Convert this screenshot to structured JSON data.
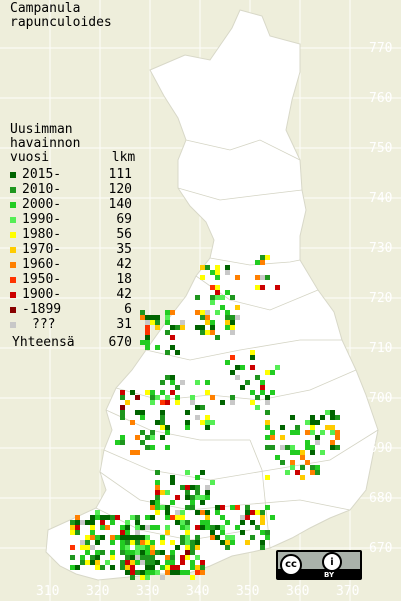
{
  "species_title": "Campanula\nrapunculoides",
  "legend": {
    "header": "Uusimman\nhavainnon\nvuosi        lkm",
    "rows": [
      {
        "label": "2015-",
        "count": "111",
        "color": "#006400"
      },
      {
        "label": "2010-",
        "count": "120",
        "color": "#1e961e"
      },
      {
        "label": "2000-",
        "count": "140",
        "color": "#22cc22"
      },
      {
        "label": "1990-",
        "count": "69",
        "color": "#55ee55"
      },
      {
        "label": "1980-",
        "count": "56",
        "color": "#ffff00"
      },
      {
        "label": "1970-",
        "count": "35",
        "color": "#ffcc00"
      },
      {
        "label": "1960-",
        "count": "42",
        "color": "#ff8000"
      },
      {
        "label": "1950-",
        "count": "18",
        "color": "#ff3300"
      },
      {
        "label": "1900-",
        "count": "42",
        "color": "#cc0000"
      },
      {
        "label": "-1899",
        "count": "6",
        "color": "#880000"
      },
      {
        "label": "???",
        "count": "31",
        "color": "#c8c8c8"
      }
    ],
    "total_label": "Yhteensä",
    "total_count": "670"
  },
  "axes": {
    "x_ticks": [
      "310",
      "320",
      "330",
      "340",
      "350",
      "360",
      "370"
    ],
    "y_ticks": [
      "770",
      "760",
      "750",
      "740",
      "730",
      "720",
      "710",
      "700",
      "690",
      "680",
      "670"
    ]
  },
  "license": {
    "cc": "cc",
    "by_icon": "i",
    "by": "BY"
  },
  "colors": {
    "background": "#eeeedb",
    "land": "#ffffff",
    "grid": "#e6e6e6"
  }
}
